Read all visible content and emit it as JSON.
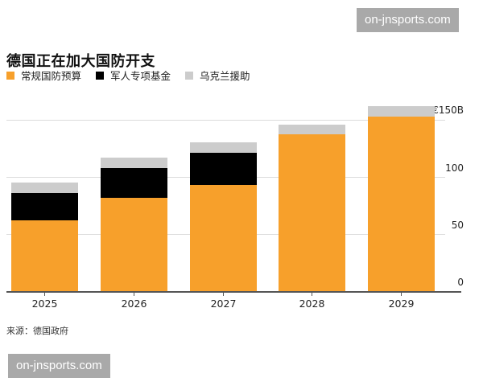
{
  "header": {
    "title": "德国正在加大国防开支"
  },
  "legend": {
    "items": [
      {
        "label": "常规国防预算",
        "color": "#f7a02b"
      },
      {
        "label": "军人专项基金",
        "color": "#000000"
      },
      {
        "label": "乌克兰援助",
        "color": "#cccccc"
      }
    ]
  },
  "axis": {
    "y_ticks": [
      "€150B",
      "100",
      "50",
      "0"
    ]
  },
  "footer": {
    "source": "来源：德国政府"
  },
  "watermarks": {
    "top": "on-jnsports.com",
    "bottom": "on-jnsports.com"
  },
  "chart_data": {
    "type": "bar",
    "stacked": true,
    "title": "德国正在加大国防开支",
    "categories": [
      "2025",
      "2026",
      "2027",
      "2028",
      "2029"
    ],
    "series": [
      {
        "name": "常规国防预算",
        "color": "#f7a02b",
        "values": [
          62,
          82,
          93,
          137,
          153
        ]
      },
      {
        "name": "军人专项基金",
        "color": "#000000",
        "values": [
          24,
          26,
          28,
          0,
          0
        ]
      },
      {
        "name": "乌克兰援助",
        "color": "#cccccc",
        "values": [
          9,
          9,
          9,
          9,
          9
        ]
      }
    ],
    "xlabel": "",
    "ylabel": "€B",
    "ylim": [
      0,
      150
    ],
    "yticks": [
      0,
      50,
      100,
      150
    ],
    "ytick_labels": [
      "0",
      "50",
      "100",
      "€150B"
    ],
    "y_axis_position": "right",
    "grid": true,
    "legend_position": "top-left",
    "source": "来源：德国政府"
  }
}
